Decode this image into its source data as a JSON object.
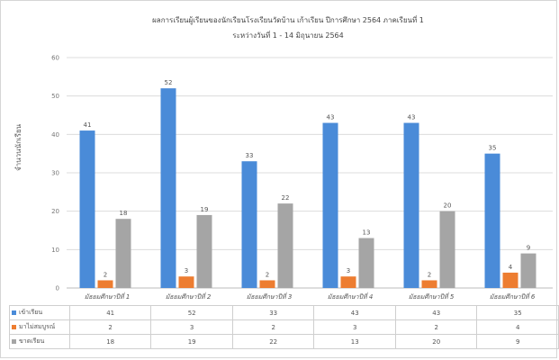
{
  "chart_data": {
    "type": "bar",
    "title": "ผลการเรียนผู้เรียนของนักเรียนโรงเรียนวัดบ้าน เก้าเรียน ปีการศึกษา 2564 ภาคเรียนที่ 1",
    "subtitle": "ระหว่างวันที่ 1 - 14 มิถุนายน 2564",
    "ylabel": "จำนวนนักเรียน",
    "xlabel": "",
    "ylim": [
      0,
      60
    ],
    "yticks": [
      0,
      10,
      20,
      30,
      40,
      50,
      60
    ],
    "grid": true,
    "legend": "table-below",
    "categories": [
      "มัธยมศึกษาปีที่ 1",
      "มัธยมศึกษาปีที่ 2",
      "มัธยมศึกษาปีที่ 3",
      "มัธยมศึกษาปีที่ 4",
      "มัธยมศึกษาปีที่ 5",
      "มัธยมศึกษาปีที่ 6"
    ],
    "series": [
      {
        "name": "เข้าเรียน",
        "color": "#4a8bd8",
        "values": [
          41,
          52,
          33,
          43,
          43,
          35
        ]
      },
      {
        "name": "มาไม่สมบูรณ์",
        "color": "#ed7d31",
        "values": [
          2,
          3,
          2,
          3,
          2,
          4
        ]
      },
      {
        "name": "ขาดเรียน",
        "color": "#a5a5a5",
        "values": [
          18,
          19,
          22,
          13,
          20,
          9
        ]
      }
    ]
  }
}
